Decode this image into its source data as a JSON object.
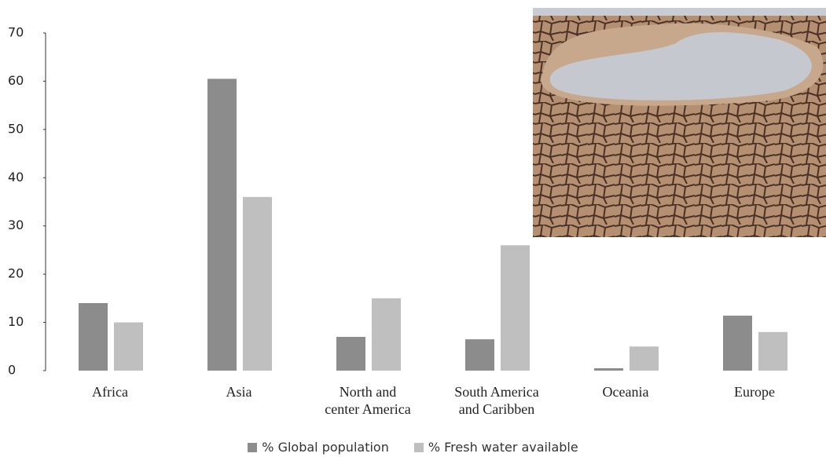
{
  "chart_data": {
    "type": "bar",
    "categories": [
      "Africa",
      "Asia",
      "North and\ncenter America",
      "South America\nand Caribben",
      "Oceania",
      "Europe"
    ],
    "series": [
      {
        "name": "% Global population",
        "color": "#8c8c8c",
        "values": [
          14,
          60.5,
          7,
          6.5,
          0.5,
          11.4
        ]
      },
      {
        "name": "% Fresh water available",
        "color": "#bfbfbf",
        "values": [
          10,
          36,
          15,
          26,
          5,
          8
        ]
      }
    ],
    "ylim": [
      0,
      70
    ],
    "yticks": [
      0,
      10,
      20,
      30,
      40,
      50,
      60,
      70
    ]
  }
}
